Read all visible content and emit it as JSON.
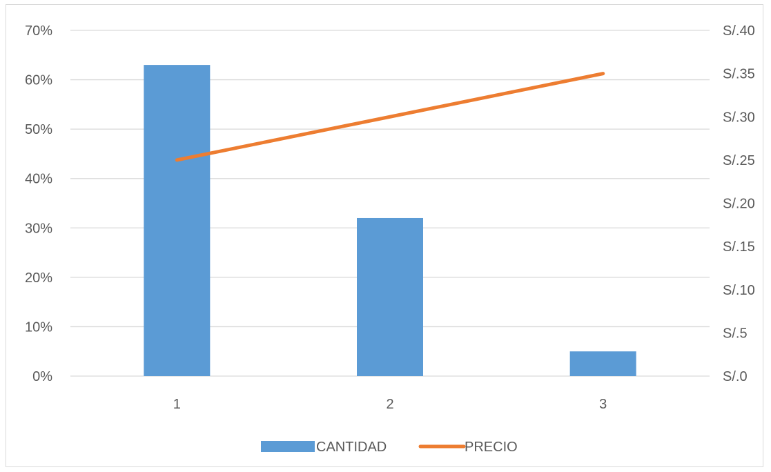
{
  "chart_data": {
    "type": "bar",
    "categories": [
      "1",
      "2",
      "3"
    ],
    "series": [
      {
        "name": "CANTIDAD",
        "type": "bar",
        "axis": "left",
        "color": "#5b9bd5",
        "values": [
          0.63,
          0.32,
          0.05
        ]
      },
      {
        "name": "PRECIO",
        "type": "line",
        "axis": "right",
        "color": "#ed7d31",
        "values": [
          0.25,
          0.3,
          0.35
        ]
      }
    ],
    "y_left": {
      "ylim": [
        0,
        0.7
      ],
      "tick_values": [
        0,
        0.1,
        0.2,
        0.3,
        0.4,
        0.5,
        0.6,
        0.7
      ],
      "tick_labels": [
        "0%",
        "10%",
        "20%",
        "30%",
        "40%",
        "50%",
        "60%",
        "70%"
      ]
    },
    "y_right": {
      "ylim": [
        0,
        0.4
      ],
      "tick_values": [
        0,
        0.05,
        0.1,
        0.15,
        0.2,
        0.25,
        0.3,
        0.35,
        0.4
      ],
      "tick_labels": [
        "S/.0",
        "S/.5",
        "S/.10",
        "S/.15",
        "S/.20",
        "S/.25",
        "S/.30",
        "S/.35",
        "S/.40"
      ]
    },
    "title": "",
    "xlabel": "",
    "ylabel": "",
    "grid": true,
    "gridline_color": "#d9d9d9",
    "legend_position": "bottom"
  }
}
